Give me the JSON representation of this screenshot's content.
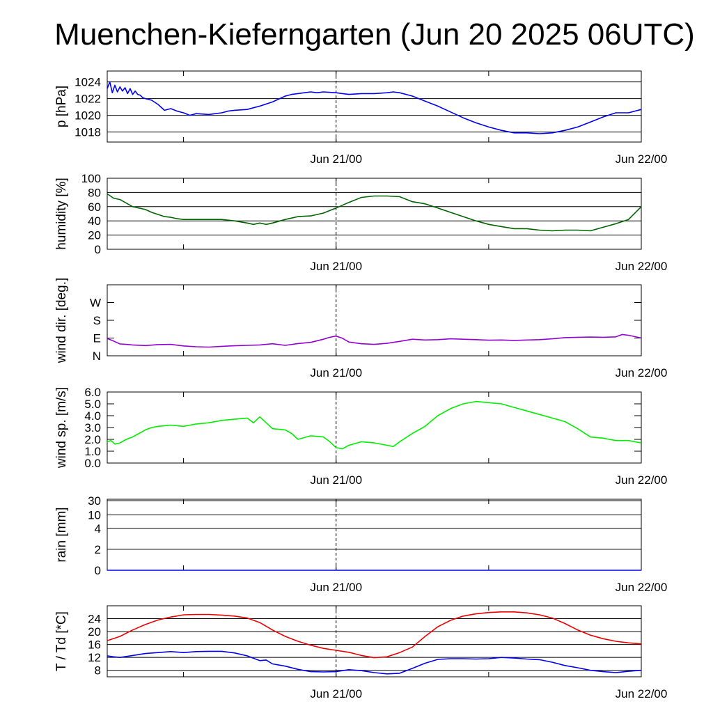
{
  "title": "Muenchen-Kieferngarten (Jun 20 2025 06UTC)",
  "x_axis": {
    "unit": "hours after Jun 20 2025 06UTC",
    "range": [
      0,
      42
    ],
    "tick_hours": [
      6,
      18,
      30
    ],
    "labels": [
      {
        "hour": 18,
        "text": "Jun 21/00"
      },
      {
        "hour": 42,
        "text": "Jun 22/00"
      }
    ],
    "divider_hour": 18
  },
  "chart_data": [
    {
      "type": "line",
      "id": "pressure",
      "ylabel": "p [hPa]",
      "ylim": [
        1016.8,
        1025.3
      ],
      "grid": true,
      "yticks": [
        1018,
        1020,
        1022,
        1024
      ],
      "series": [
        {
          "color": "#0000ee",
          "x": [
            0,
            0.2,
            0.4,
            0.6,
            0.8,
            1,
            1.2,
            1.4,
            1.6,
            1.8,
            2,
            2.2,
            2.4,
            2.6,
            2.8,
            3,
            3.5,
            4,
            4.5,
            5,
            5.5,
            6,
            6.5,
            7,
            8,
            9,
            9.5,
            10,
            11,
            12,
            13,
            14,
            14.5,
            15,
            15.5,
            16,
            16.5,
            17,
            18,
            18.5,
            19,
            20,
            21,
            22,
            22.5,
            23,
            24,
            25,
            26,
            27,
            28,
            29,
            30,
            31,
            32,
            33,
            34,
            35,
            36,
            37,
            38,
            39,
            40,
            41,
            42
          ],
          "values": [
            1023.2,
            1024.0,
            1022.7,
            1023.6,
            1022.8,
            1023.4,
            1022.9,
            1023.3,
            1022.6,
            1023.2,
            1022.5,
            1022.9,
            1022.5,
            1022.4,
            1022.1,
            1022.0,
            1021.8,
            1021.3,
            1020.6,
            1020.8,
            1020.5,
            1020.3,
            1020.0,
            1020.2,
            1020.1,
            1020.3,
            1020.5,
            1020.6,
            1020.7,
            1021.1,
            1021.6,
            1022.3,
            1022.5,
            1022.6,
            1022.7,
            1022.8,
            1022.7,
            1022.8,
            1022.7,
            1022.6,
            1022.5,
            1022.6,
            1022.6,
            1022.7,
            1022.8,
            1022.7,
            1022.3,
            1021.7,
            1021.1,
            1020.4,
            1019.7,
            1019.1,
            1018.6,
            1018.2,
            1017.9,
            1017.9,
            1017.8,
            1017.9,
            1018.2,
            1018.6,
            1019.2,
            1019.8,
            1020.3,
            1020.3,
            1020.7
          ]
        }
      ]
    },
    {
      "type": "line",
      "id": "humidity",
      "ylabel": "humidity [%]",
      "ylim": [
        0,
        100
      ],
      "grid": true,
      "yticks": [
        0,
        20,
        40,
        60,
        80,
        100
      ],
      "series": [
        {
          "color": "#006400",
          "x": [
            0,
            0.5,
            1,
            1.5,
            2,
            2.5,
            3,
            3.5,
            4,
            4.5,
            5,
            5.5,
            6,
            7,
            8,
            9,
            10,
            11,
            11.5,
            12,
            12.5,
            13,
            14,
            15,
            16,
            17,
            18,
            19,
            20,
            21,
            22,
            23,
            24,
            25,
            26,
            27,
            28,
            29,
            30,
            31,
            32,
            33,
            34,
            35,
            36,
            37,
            38,
            39,
            40,
            41,
            42
          ],
          "values": [
            78,
            72,
            70,
            65,
            60,
            58,
            56,
            52,
            49,
            46,
            45,
            43,
            42,
            42,
            42,
            42,
            40,
            37,
            35,
            37,
            35,
            37,
            42,
            46,
            47,
            51,
            58,
            66,
            73,
            75,
            75,
            74,
            67,
            64,
            58,
            52,
            46,
            40,
            35,
            32,
            29,
            29,
            27,
            26,
            27,
            27,
            26,
            31,
            36,
            42,
            60
          ]
        }
      ]
    },
    {
      "type": "line",
      "id": "wind_direction",
      "ylabel": "wind dir. [deg.]",
      "ylim": [
        0,
        360
      ],
      "grid": false,
      "ytick_labels": [
        {
          "value": 0,
          "text": "N"
        },
        {
          "value": 90,
          "text": "E"
        },
        {
          "value": 180,
          "text": "S"
        },
        {
          "value": 270,
          "text": "W"
        }
      ],
      "series": [
        {
          "color": "#9400d3",
          "x": [
            0,
            0.5,
            1,
            1.5,
            2,
            3,
            4,
            5,
            6,
            7,
            8,
            9,
            10,
            11,
            12,
            13,
            14,
            15,
            16,
            17,
            17.5,
            18,
            18.5,
            19,
            20,
            21,
            22,
            23,
            24,
            25,
            26,
            27,
            28,
            29,
            30,
            31,
            32,
            33,
            34,
            35,
            36,
            37,
            38,
            39,
            40,
            40.5,
            41,
            42
          ],
          "values": [
            88,
            75,
            60,
            58,
            55,
            52,
            57,
            58,
            50,
            46,
            44,
            48,
            51,
            53,
            55,
            61,
            53,
            62,
            68,
            84,
            94,
            100,
            89,
            70,
            61,
            58,
            63,
            73,
            84,
            80,
            82,
            86,
            84,
            82,
            79,
            80,
            78,
            80,
            82,
            86,
            92,
            94,
            95,
            94,
            96,
            108,
            104,
            90
          ]
        }
      ]
    },
    {
      "type": "line",
      "id": "wind_speed",
      "ylabel": "wind sp. [m/s]",
      "ylim": [
        0,
        6
      ],
      "grid": false,
      "yticks": [
        0,
        1,
        2,
        3,
        4,
        5,
        6
      ],
      "ytick_labels": [
        "0.0",
        "1.0",
        "2.0",
        "3.0",
        "4.0",
        "5.0",
        "6.0"
      ],
      "series": [
        {
          "color": "#00ee00",
          "x": [
            0,
            0.3,
            0.6,
            1,
            1.5,
            2,
            2.5,
            3,
            3.5,
            4,
            5,
            6,
            7,
            8,
            9,
            10,
            11,
            11.5,
            12,
            12.5,
            13,
            14,
            14.5,
            15,
            16,
            17,
            17.5,
            18,
            18.5,
            19,
            20,
            21,
            22,
            22.5,
            23,
            24,
            25,
            26,
            27,
            28,
            29,
            30,
            31,
            32,
            33,
            34,
            35,
            36,
            37,
            38,
            39,
            40,
            41,
            42
          ],
          "values": [
            1.8,
            1.9,
            1.6,
            1.7,
            2.0,
            2.2,
            2.5,
            2.8,
            3.0,
            3.1,
            3.2,
            3.1,
            3.3,
            3.4,
            3.6,
            3.7,
            3.8,
            3.4,
            3.9,
            3.4,
            2.9,
            2.8,
            2.5,
            2.0,
            2.3,
            2.2,
            1.8,
            1.3,
            1.2,
            1.5,
            1.8,
            1.7,
            1.5,
            1.4,
            1.8,
            2.5,
            3.1,
            4.0,
            4.6,
            5.0,
            5.2,
            5.1,
            5.0,
            4.7,
            4.4,
            4.1,
            3.8,
            3.5,
            2.9,
            2.2,
            2.1,
            1.9,
            1.9,
            1.7
          ]
        }
      ]
    },
    {
      "type": "line",
      "id": "rain",
      "ylabel": "rain [mm]",
      "scale": "nonlinear",
      "grid": true,
      "ytick_labels": [
        {
          "value": 0,
          "text": "0"
        },
        {
          "value": 2,
          "text": "2"
        },
        {
          "value": 4,
          "text": "4"
        },
        {
          "value": 10,
          "text": "10"
        },
        {
          "value": 30,
          "text": "30"
        }
      ],
      "series": [
        {
          "color": "#0000ee",
          "x": [
            0,
            42
          ],
          "values": [
            0,
            0
          ]
        }
      ]
    },
    {
      "type": "line",
      "id": "temperature",
      "ylabel": "T / Td [*C]",
      "ylim": [
        6,
        28
      ],
      "grid": true,
      "yticks": [
        8,
        12,
        16,
        20,
        24
      ],
      "series": [
        {
          "color": "#ee0000",
          "x": [
            0,
            1,
            2,
            3,
            4,
            5,
            6,
            7,
            8,
            9,
            10,
            11,
            12,
            13,
            14,
            15,
            16,
            17,
            18,
            19,
            20,
            21,
            22,
            23,
            24,
            25,
            26,
            27,
            28,
            29,
            30,
            31,
            32,
            33,
            34,
            35,
            36,
            37,
            38,
            39,
            40,
            41,
            42
          ],
          "values": [
            17.2,
            18.5,
            20.5,
            22.2,
            23.6,
            24.5,
            25.2,
            25.3,
            25.3,
            25.1,
            24.8,
            24.2,
            22.8,
            20.5,
            18.5,
            17.0,
            15.8,
            14.8,
            14.2,
            13.6,
            12.6,
            11.9,
            12.2,
            13.5,
            15.2,
            18.5,
            21.5,
            23.5,
            24.8,
            25.5,
            25.9,
            26.1,
            26.1,
            25.8,
            25.2,
            24.2,
            22.5,
            20.5,
            18.9,
            17.8,
            17.0,
            16.5,
            16.2
          ]
        },
        {
          "color": "#0000ee",
          "x": [
            0,
            0.5,
            1,
            2,
            3,
            4,
            5,
            6,
            7,
            8,
            9,
            10,
            11,
            12,
            12.5,
            13,
            14,
            15,
            16,
            17,
            18,
            19,
            20,
            21,
            22,
            23,
            24,
            25,
            26,
            27,
            28,
            29,
            30,
            31,
            32,
            33,
            34,
            35,
            36,
            37,
            38,
            39,
            40,
            41,
            42
          ],
          "values": [
            12.5,
            12.2,
            12.0,
            12.6,
            13.2,
            13.5,
            13.8,
            13.5,
            13.8,
            13.9,
            13.9,
            13.4,
            12.5,
            11.0,
            11.2,
            10.0,
            9.3,
            8.3,
            7.6,
            7.5,
            7.6,
            8.2,
            7.9,
            7.3,
            6.9,
            7.1,
            8.6,
            10.2,
            11.4,
            11.6,
            11.6,
            11.5,
            11.6,
            12.0,
            11.8,
            11.5,
            11.3,
            10.5,
            9.5,
            8.8,
            8.0,
            7.6,
            7.3,
            7.7,
            8.0
          ]
        }
      ]
    }
  ]
}
